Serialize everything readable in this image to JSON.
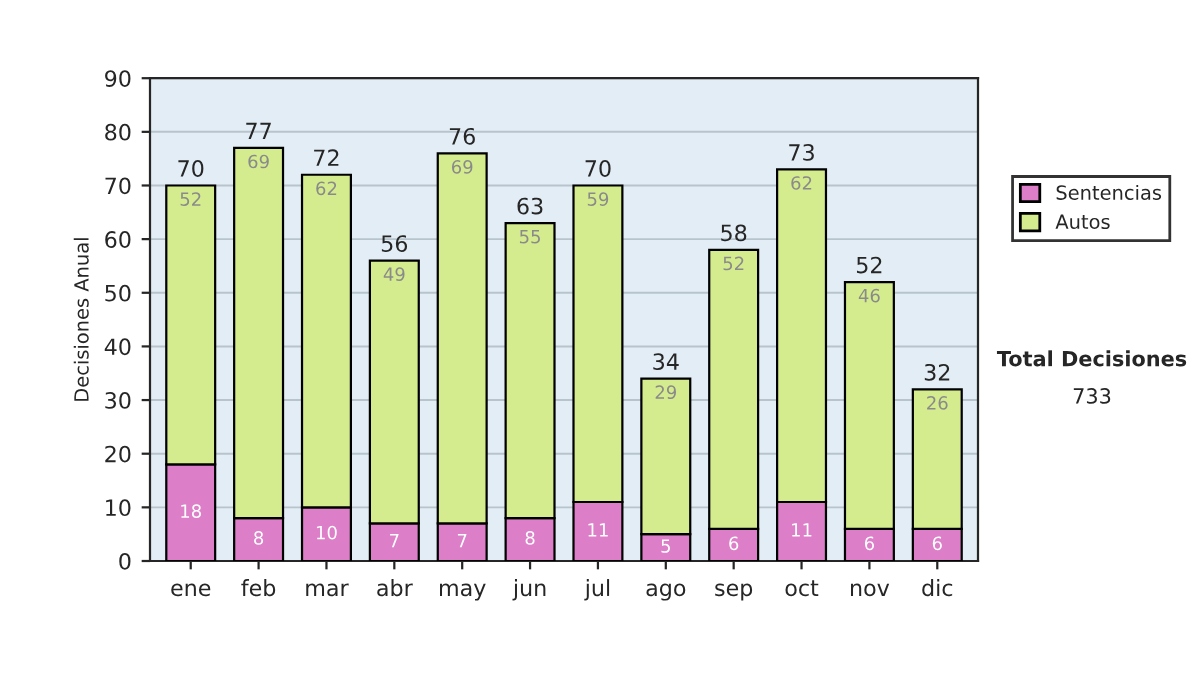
{
  "chart_data": {
    "type": "bar",
    "stacked": true,
    "ylabel": "Decisiones Anual",
    "categories": [
      "ene",
      "feb",
      "mar",
      "abr",
      "may",
      "jun",
      "jul",
      "ago",
      "sep",
      "oct",
      "nov",
      "dic"
    ],
    "series": [
      {
        "name": "Sentencias",
        "color": "#dc7fc8",
        "values": [
          18,
          8,
          10,
          7,
          7,
          8,
          11,
          5,
          6,
          11,
          6,
          6
        ]
      },
      {
        "name": "Autos",
        "color": "#d5ec8e",
        "values": [
          52,
          69,
          62,
          49,
          69,
          55,
          59,
          29,
          52,
          62,
          46,
          26
        ]
      }
    ],
    "totals": [
      "70",
      "77",
      "72",
      "56",
      "76",
      "63",
      "70",
      "34",
      "58",
      "73",
      "52",
      "32"
    ],
    "data_labels": true,
    "ylim": [
      0,
      90
    ],
    "yticks": [
      0,
      10,
      20,
      30,
      40,
      50,
      60,
      70,
      80,
      90
    ],
    "grid": "y",
    "legend": "right",
    "annotations": [
      "Total Decisiones",
      "733"
    ]
  }
}
